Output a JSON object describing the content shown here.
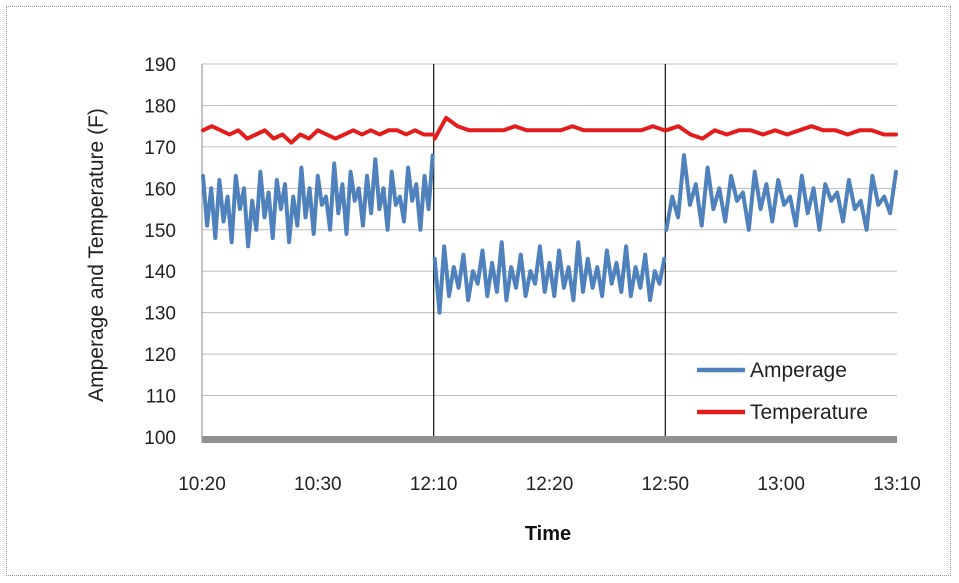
{
  "chart_data": {
    "type": "line",
    "title": "",
    "xlabel": "Time",
    "ylabel": "Amperage and Temperature (F)",
    "ylim": [
      100,
      190
    ],
    "yticks": [
      "100",
      "110",
      "120",
      "130",
      "140",
      "150",
      "160",
      "170",
      "180",
      "190"
    ],
    "xticks": [
      "10:20",
      "10:30",
      "12:10",
      "12:20",
      "12:50",
      "13:00",
      "13:10"
    ],
    "grid": "horizontal",
    "legend_position": "bottom-right",
    "segments_note_labels": [
      "Segment boundary at 12:10",
      "Segment boundary at 12:50"
    ],
    "series": [
      {
        "name": "Amperage",
        "color": "#4f81bd",
        "segments": [
          {
            "x_start": "10:20",
            "x_end": "12:10",
            "values": [
              163,
              151,
              160,
              148,
              162,
              152,
              158,
              147,
              163,
              155,
              160,
              146,
              157,
              150,
              164,
              153,
              159,
              148,
              162,
              155,
              161,
              147,
              158,
              151,
              165,
              153,
              160,
              149,
              163,
              156,
              158,
              150,
              166,
              154,
              161,
              149,
              164,
              157,
              160,
              151,
              163,
              154,
              167,
              155,
              160,
              150,
              164,
              156,
              158,
              152,
              165,
              157,
              161,
              150,
              163,
              155,
              168
            ]
          },
          {
            "x_start": "12:10",
            "x_end": "12:50",
            "values": [
              143,
              130,
              146,
              134,
              141,
              136,
              144,
              133,
              140,
              137,
              145,
              134,
              142,
              135,
              147,
              133,
              141,
              136,
              144,
              134,
              140,
              137,
              146,
              135,
              142,
              134,
              145,
              136,
              141,
              133,
              147,
              135,
              143,
              136,
              141,
              134,
              145,
              137,
              142,
              135,
              146,
              134,
              141,
              136,
              144,
              133,
              140,
              137,
              143
            ]
          },
          {
            "x_start": "12:50",
            "x_end": "13:10",
            "values": [
              150,
              158,
              153,
              168,
              156,
              161,
              151,
              165,
              155,
              160,
              152,
              163,
              157,
              159,
              150,
              164,
              155,
              161,
              152,
              162,
              156,
              158,
              151,
              163,
              154,
              160,
              150,
              161,
              157,
              159,
              152,
              162,
              155,
              157,
              150,
              163,
              156,
              158,
              154,
              164
            ]
          }
        ]
      },
      {
        "name": "Temperature",
        "color": "#e31c1c",
        "segments": [
          {
            "x_start": "10:20",
            "x_end": "12:10",
            "values": [
              174,
              175,
              174,
              173,
              174,
              172,
              173,
              174,
              172,
              173,
              171,
              173,
              172,
              174,
              173,
              172,
              173,
              174,
              173,
              174,
              173,
              174,
              174,
              173,
              174,
              173,
              173
            ]
          },
          {
            "x_start": "12:10",
            "x_end": "12:50",
            "values": [
              172,
              177,
              175,
              174,
              174,
              174,
              174,
              175,
              174,
              174,
              174,
              174,
              175,
              174,
              174,
              174,
              174,
              174,
              174,
              175,
              174
            ]
          },
          {
            "x_start": "12:50",
            "x_end": "13:10",
            "values": [
              174,
              175,
              173,
              172,
              174,
              173,
              174,
              174,
              173,
              174,
              173,
              174,
              175,
              174,
              174,
              173,
              174,
              174,
              173,
              173
            ]
          }
        ]
      }
    ]
  }
}
